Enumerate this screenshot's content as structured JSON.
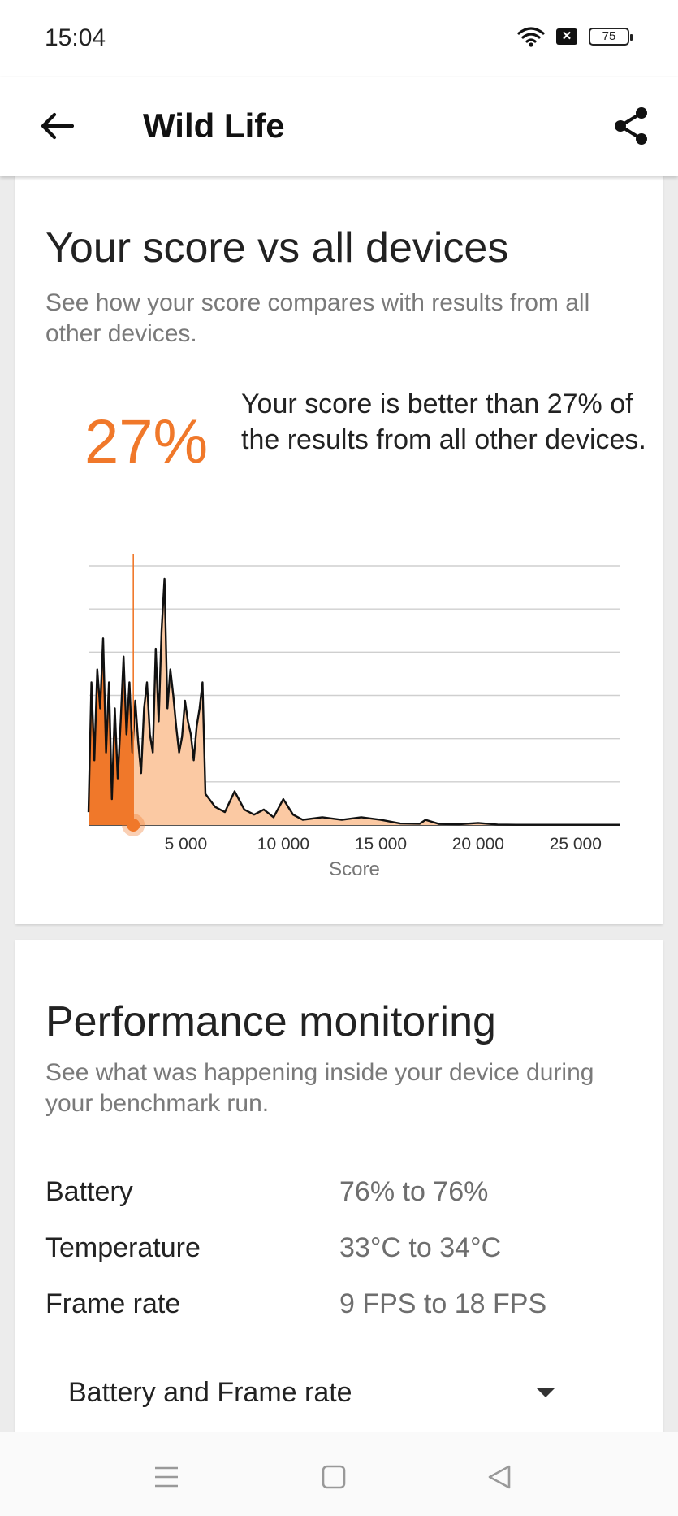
{
  "status_bar": {
    "time": "15:04",
    "battery_level": "75",
    "icons": [
      "wifi-icon",
      "sim-blocked-icon",
      "battery-icon"
    ]
  },
  "app_bar": {
    "title": "Wild Life",
    "icons": [
      "back-arrow-icon",
      "share-icon"
    ]
  },
  "score_card": {
    "title": "Your score vs all devices",
    "subtitle": "See how your score compares with results from all other devices.",
    "percent": "27%",
    "percent_text": "Your score is better than 27% of the results from all other devices."
  },
  "chart_data": {
    "type": "area",
    "xlabel": "Score",
    "xticks": [
      "5 000",
      "10 000",
      "15 000",
      "20 000",
      "25 000"
    ],
    "xlim": [
      0,
      27300
    ],
    "your_score": 2300,
    "your_percentile": 27,
    "x": [
      0,
      150,
      300,
      450,
      600,
      750,
      900,
      1050,
      1200,
      1350,
      1500,
      1650,
      1800,
      1950,
      2100,
      2250,
      2400,
      2550,
      2700,
      2850,
      3000,
      3150,
      3300,
      3450,
      3600,
      3750,
      3900,
      4050,
      4200,
      4350,
      4500,
      4650,
      4800,
      4950,
      5100,
      5250,
      5400,
      5550,
      5700,
      5850,
      6000,
      6500,
      7000,
      7500,
      8000,
      8500,
      9000,
      9500,
      10000,
      10500,
      11000,
      12000,
      13000,
      14000,
      15000,
      16000,
      17000,
      17300,
      18000,
      19000,
      20000,
      21000,
      22000,
      25000,
      27300
    ],
    "y": [
      0.05,
      0.55,
      0.25,
      0.6,
      0.45,
      0.72,
      0.28,
      0.55,
      0.1,
      0.45,
      0.18,
      0.4,
      0.65,
      0.35,
      0.55,
      0.28,
      0.48,
      0.32,
      0.2,
      0.45,
      0.55,
      0.35,
      0.28,
      0.68,
      0.4,
      0.75,
      0.95,
      0.45,
      0.6,
      0.5,
      0.38,
      0.28,
      0.34,
      0.48,
      0.4,
      0.35,
      0.25,
      0.38,
      0.45,
      0.55,
      0.12,
      0.07,
      0.05,
      0.13,
      0.06,
      0.04,
      0.06,
      0.03,
      0.1,
      0.04,
      0.02,
      0.03,
      0.02,
      0.03,
      0.02,
      0.006,
      0.005,
      0.02,
      0.004,
      0.003,
      0.008,
      0.002,
      0.001,
      0.001,
      0.001
    ]
  },
  "perf_card": {
    "title": "Performance monitoring",
    "subtitle": "See what was happening inside your device during your benchmark run.",
    "metrics": [
      {
        "label": "Battery",
        "value": "76% to 76%"
      },
      {
        "label": "Temperature",
        "value": "33°C to 34°C"
      },
      {
        "label": "Frame rate",
        "value": "9 FPS to 18 FPS"
      }
    ],
    "dropdown": {
      "selected": "Battery and Frame rate"
    }
  },
  "nav_bar": {
    "icons": [
      "menu-icon",
      "home-icon",
      "back-icon"
    ]
  },
  "colors": {
    "accent": "#f0782a",
    "accent_light": "#fbc9a3",
    "text": "#222222",
    "muted": "#7a7a7a"
  }
}
